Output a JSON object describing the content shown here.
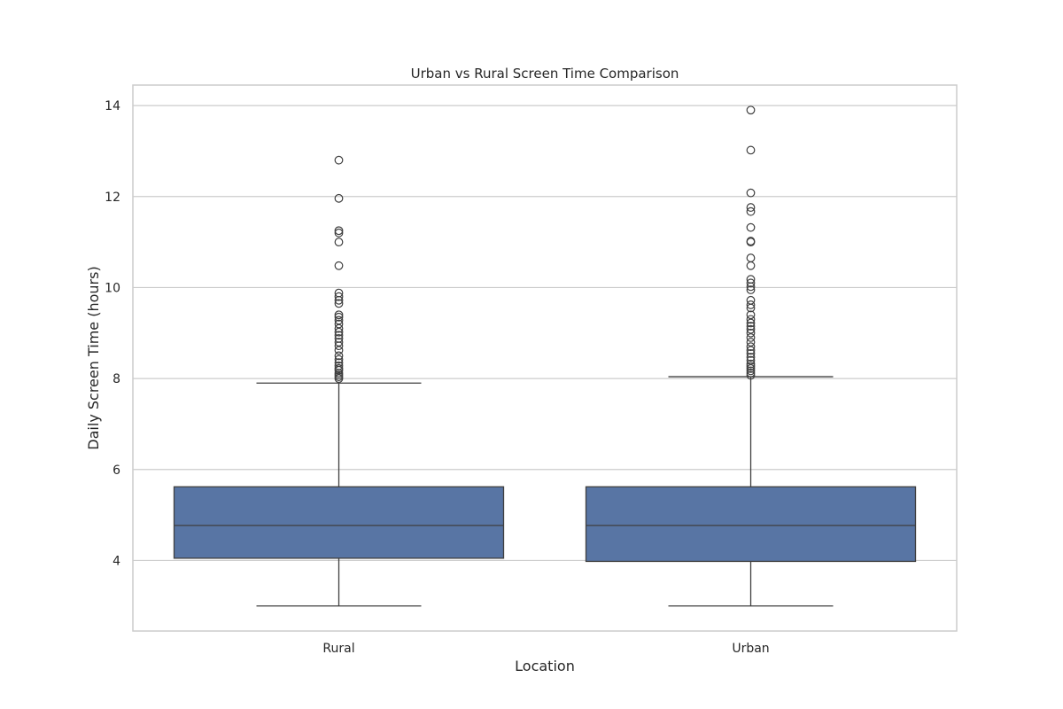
{
  "chart_data": {
    "type": "box",
    "title": "Urban vs Rural Screen Time Comparison",
    "xlabel": "Location",
    "ylabel": "Daily Screen Time (hours)",
    "ylim": [
      2.45,
      14.45
    ],
    "yticks": [
      4,
      6,
      8,
      10,
      12,
      14
    ],
    "grid": true,
    "box_color": "#5875a4",
    "line_color": "#3f3f3f",
    "grid_color": "#cccccc",
    "categories": [
      "Rural",
      "Urban"
    ],
    "boxes": [
      {
        "category": "Rural",
        "whisker_low": 3.0,
        "q1": 4.05,
        "median": 4.77,
        "q3": 5.62,
        "whisker_high": 7.9,
        "outliers": [
          8.0,
          8.04,
          8.08,
          8.12,
          8.18,
          8.22,
          8.28,
          8.35,
          8.42,
          8.5,
          8.62,
          8.72,
          8.8,
          8.88,
          8.95,
          9.02,
          9.1,
          9.2,
          9.28,
          9.35,
          9.4,
          9.65,
          9.72,
          9.8,
          9.88,
          10.48,
          11.0,
          11.2,
          11.25,
          11.96,
          12.8
        ]
      },
      {
        "category": "Urban",
        "whisker_low": 3.0,
        "q1": 3.98,
        "median": 4.77,
        "q3": 5.62,
        "whisker_high": 8.04,
        "outliers": [
          8.07,
          8.12,
          8.17,
          8.22,
          8.27,
          8.32,
          8.4,
          8.47,
          8.55,
          8.62,
          8.7,
          8.8,
          8.9,
          9.0,
          9.08,
          9.15,
          9.22,
          9.3,
          9.4,
          9.55,
          9.62,
          9.72,
          9.95,
          10.02,
          10.1,
          10.18,
          10.48,
          10.65,
          11.0,
          11.02,
          11.32,
          11.67,
          11.76,
          12.08,
          13.02,
          13.9
        ]
      }
    ]
  }
}
